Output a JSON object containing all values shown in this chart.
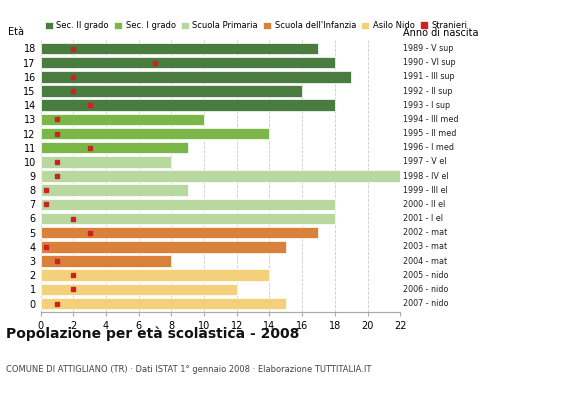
{
  "ages": [
    18,
    17,
    16,
    15,
    14,
    13,
    12,
    11,
    10,
    9,
    8,
    7,
    6,
    5,
    4,
    3,
    2,
    1,
    0
  ],
  "anno_nascita": [
    "1989 - V sup",
    "1990 - VI sup",
    "1991 - III sup",
    "1992 - II sup",
    "1993 - I sup",
    "1994 - III med",
    "1995 - II med",
    "1996 - I med",
    "1997 - V el",
    "1998 - IV el",
    "1999 - III el",
    "2000 - II el",
    "2001 - I el",
    "2002 - mat",
    "2003 - mat",
    "2004 - mat",
    "2005 - nido",
    "2006 - nido",
    "2007 - nido"
  ],
  "bar_values": [
    17,
    18,
    19,
    16,
    18,
    10,
    14,
    9,
    8,
    22,
    9,
    18,
    18,
    17,
    15,
    8,
    14,
    12,
    15
  ],
  "stranieri": [
    2,
    7,
    2,
    2,
    3,
    1,
    1,
    3,
    1,
    1,
    0.3,
    0.3,
    2,
    3,
    0.3,
    1,
    2,
    2,
    1
  ],
  "colors": [
    "#4a7c3f",
    "#4a7c3f",
    "#4a7c3f",
    "#4a7c3f",
    "#4a7c3f",
    "#7ab648",
    "#7ab648",
    "#7ab648",
    "#b8d8a0",
    "#b8d8a0",
    "#b8d8a0",
    "#b8d8a0",
    "#b8d8a0",
    "#d9813a",
    "#d9813a",
    "#d9813a",
    "#f5d07a",
    "#f5d07a",
    "#f5d07a"
  ],
  "legend_labels": [
    "Sec. II grado",
    "Sec. I grado",
    "Scuola Primaria",
    "Scuola dell'Infanzia",
    "Asilo Nido",
    "Stranieri"
  ],
  "legend_colors": [
    "#4a7c3f",
    "#7ab648",
    "#b8d8a0",
    "#d9813a",
    "#f5d07a",
    "#cc2222"
  ],
  "title": "Popolazione per età scolastica - 2008",
  "subtitle": "COMUNE DI ATTIGLIANO (TR) · Dati ISTAT 1° gennaio 2008 · Elaborazione TUTTITALIA.IT",
  "xlabel_eta": "Età",
  "xlabel_anno": "Anno di nascita",
  "xlim": [
    0,
    22
  ],
  "xticks": [
    0,
    2,
    4,
    6,
    8,
    10,
    12,
    14,
    16,
    18,
    20,
    22
  ],
  "stranieri_color": "#cc2222",
  "bar_height": 0.82,
  "background_color": "#ffffff",
  "grid_color": "#cccccc"
}
